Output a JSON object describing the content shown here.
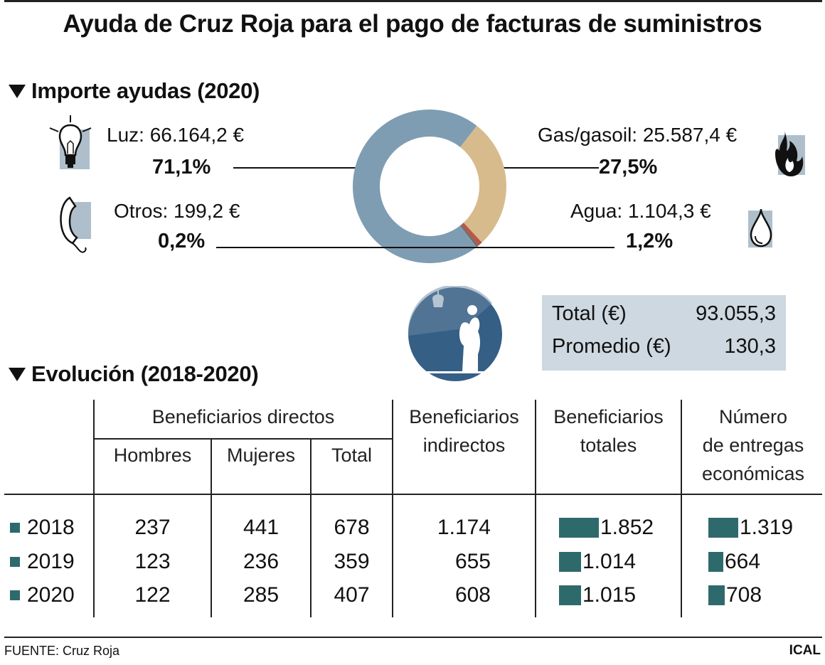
{
  "title": "Ayuda de Cruz Roja para el pago de facturas de suministros",
  "sections": {
    "importe": "Importe ayudas (2020)",
    "evolucion": "Evolución (2018-2020)"
  },
  "donut": {
    "luz": {
      "label": "Luz: 66.164,2 €",
      "pct": "71,1%"
    },
    "gas": {
      "label": "Gas/gasoil: 25.587,4 €",
      "pct": "27,5%"
    },
    "otros": {
      "label": "Otros: 199,2 €",
      "pct": "0,2%"
    },
    "agua": {
      "label": "Agua: 1.104,3 €",
      "pct": "1,2%"
    }
  },
  "totals": {
    "total_label": "Total (€)",
    "total_value": "93.055,3",
    "promedio_label": "Promedio (€)",
    "promedio_value": "130,3"
  },
  "table": {
    "group_directos": "Beneficiarios directos",
    "h_hombres": "Hombres",
    "h_mujeres": "Mujeres",
    "h_total": "Total",
    "h_indirectos_1": "Beneficiarios",
    "h_indirectos_2": "indirectos",
    "h_totales_1": "Beneficiarios",
    "h_totales_2": "totales",
    "h_entregas_1": "Número",
    "h_entregas_2": "de entregas",
    "h_entregas_3": "económicas",
    "rows": [
      {
        "year": "2018",
        "hombres": "237",
        "mujeres": "441",
        "total": "678",
        "indirectos": "1.174",
        "totales": "1.852",
        "entregas": "1.319"
      },
      {
        "year": "2019",
        "hombres": "123",
        "mujeres": "236",
        "total": "359",
        "indirectos": "655",
        "totales": "1.014",
        "entregas": "664"
      },
      {
        "year": "2020",
        "hombres": "122",
        "mujeres": "285",
        "total": "407",
        "indirectos": "608",
        "totales": "1.015",
        "entregas": "708"
      }
    ]
  },
  "source": "FUENTE: Cruz Roja",
  "credit": "ICAL",
  "colors": {
    "luz": "#7f9db2",
    "gas": "#d7bb8d",
    "agua": "#b4594b",
    "otros": "#2f6d6a",
    "bar": "#2e6a6c",
    "badge": "#355f85"
  },
  "chart_data": [
    {
      "type": "pie",
      "title": "Importe ayudas (2020)",
      "categories": [
        "Luz",
        "Gas/gasoil",
        "Agua",
        "Otros"
      ],
      "values": [
        66164.2,
        25587.4,
        1104.3,
        199.2
      ],
      "percent": [
        71.1,
        27.5,
        1.2,
        0.2
      ],
      "donut": true
    },
    {
      "type": "table",
      "title": "Evolución (2018-2020)",
      "columns": [
        "Hombres",
        "Mujeres",
        "Total",
        "Beneficiarios indirectos",
        "Beneficiarios totales",
        "Número de entregas económicas"
      ],
      "rows": [
        "2018",
        "2019",
        "2020"
      ],
      "values": [
        [
          237,
          441,
          678,
          1174,
          1852,
          1319
        ],
        [
          123,
          236,
          359,
          655,
          1014,
          664
        ],
        [
          122,
          285,
          407,
          608,
          1015,
          708
        ]
      ],
      "bar_series": [
        {
          "name": "Beneficiarios totales",
          "values": [
            1852,
            1014,
            1015
          ]
        },
        {
          "name": "Número de entregas económicas",
          "values": [
            1319,
            664,
            708
          ]
        }
      ]
    }
  ]
}
